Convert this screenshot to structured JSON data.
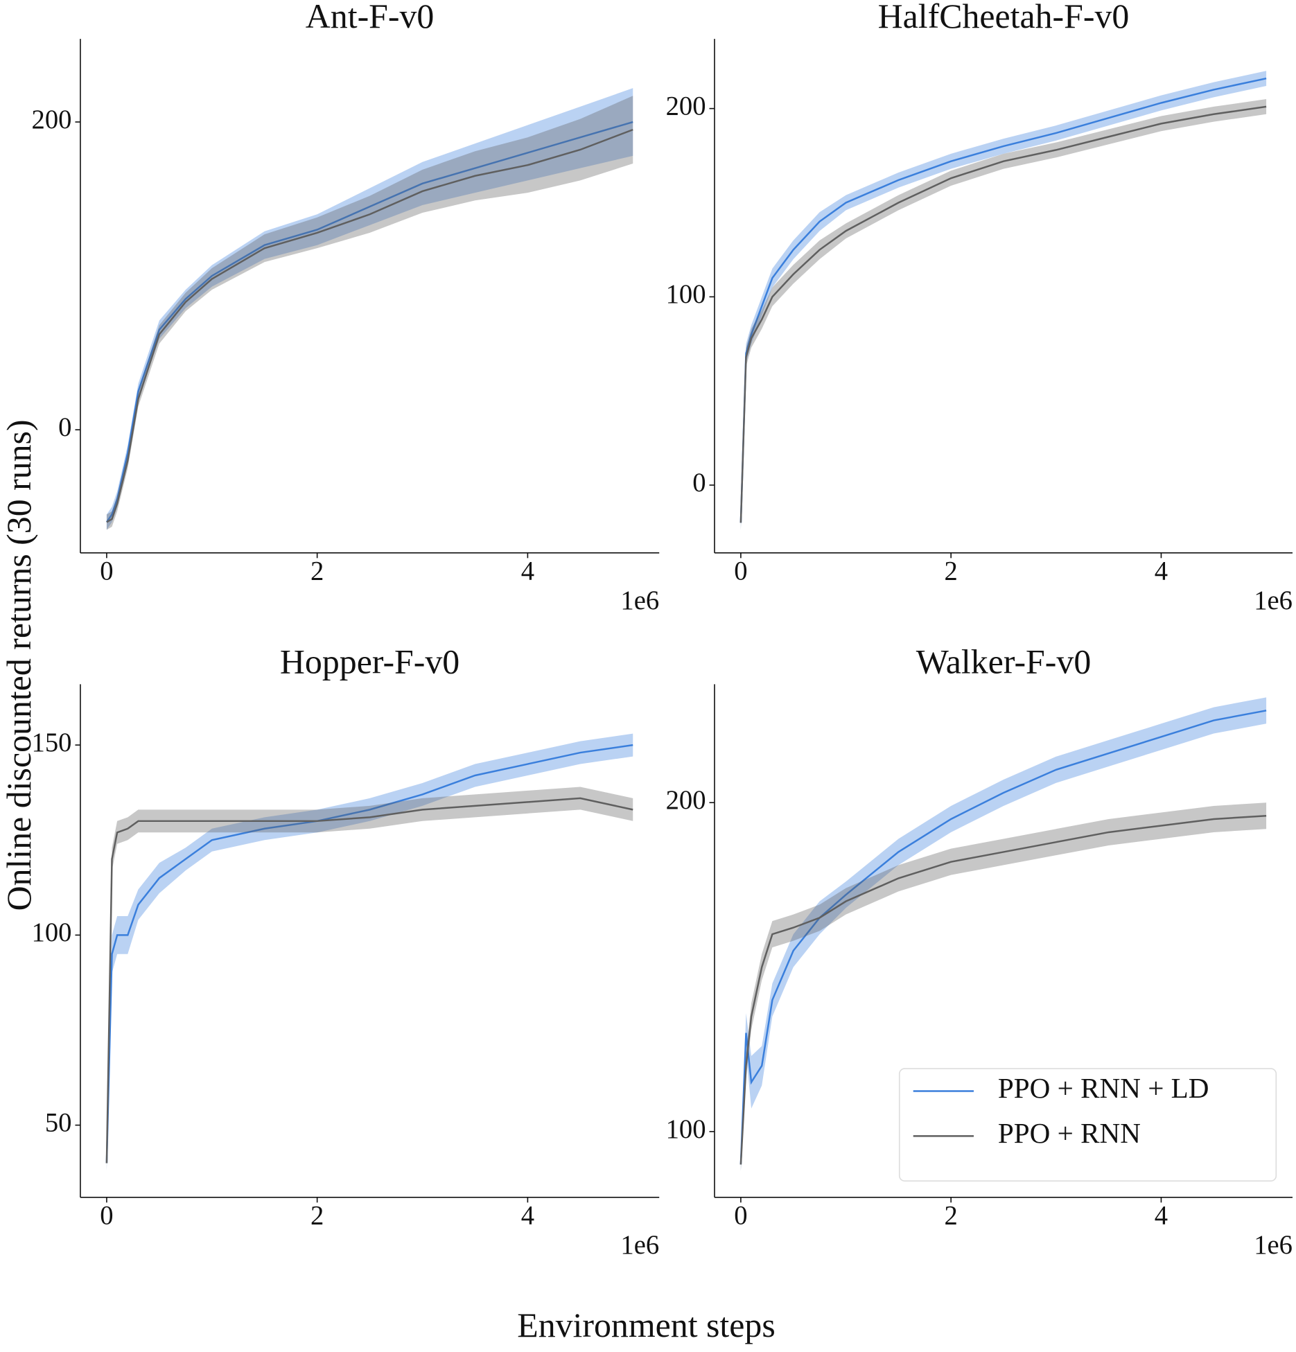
{
  "figure": {
    "xlabel": "Environment steps",
    "ylabel": "Online discounted returns (30 runs)"
  },
  "chart_data": [
    {
      "type": "line",
      "title": "Ant-F-v0",
      "x_offset_label": "1e6",
      "x": [
        0,
        0.05,
        0.1,
        0.2,
        0.3,
        0.5,
        0.75,
        1,
        1.5,
        2,
        2.5,
        3,
        3.5,
        4,
        4.5,
        5
      ],
      "series": [
        {
          "color": "#3a7fdc",
          "values": [
            -60,
            -55,
            -45,
            -15,
            25,
            65,
            85,
            100,
            120,
            130,
            145,
            160,
            170,
            180,
            190,
            200
          ],
          "spread": [
            5,
            5,
            5,
            5,
            5,
            6,
            6,
            7,
            9,
            10,
            12,
            14,
            16,
            18,
            20,
            22
          ]
        },
        {
          "color": "#5f5f5f",
          "values": [
            -60,
            -58,
            -48,
            -20,
            20,
            62,
            83,
            98,
            118,
            128,
            140,
            155,
            165,
            172,
            182,
            195
          ],
          "spread": [
            5,
            5,
            5,
            5,
            5,
            6,
            6,
            7,
            9,
            10,
            12,
            14,
            16,
            18,
            20,
            22
          ]
        }
      ],
      "xlim": [
        -0.25,
        5.25
      ],
      "ylim": [
        -80,
        254
      ],
      "xticks": [
        0,
        2,
        4
      ],
      "yticks": [
        0,
        200
      ]
    },
    {
      "type": "line",
      "title": "HalfCheetah-F-v0",
      "x_offset_label": "1e6",
      "x": [
        0,
        0.05,
        0.1,
        0.2,
        0.3,
        0.5,
        0.75,
        1,
        1.5,
        2,
        2.5,
        3,
        3.5,
        4,
        4.5,
        5
      ],
      "series": [
        {
          "color": "#3a7fdc",
          "values": [
            -20,
            70,
            80,
            95,
            110,
            125,
            140,
            150,
            162,
            172,
            180,
            187,
            195,
            203,
            210,
            216
          ],
          "spread": [
            4,
            5,
            5,
            5,
            5,
            5,
            5,
            4,
            4,
            4,
            4,
            4,
            4,
            4,
            4,
            4
          ]
        },
        {
          "color": "#5f5f5f",
          "values": [
            -20,
            68,
            78,
            88,
            100,
            112,
            125,
            135,
            150,
            163,
            172,
            178,
            185,
            192,
            197,
            201
          ],
          "spread": [
            4,
            5,
            5,
            5,
            5,
            5,
            5,
            4,
            4,
            4,
            4,
            4,
            4,
            4,
            4,
            4
          ]
        }
      ],
      "xlim": [
        -0.25,
        5.25
      ],
      "ylim": [
        -36,
        237
      ],
      "xticks": [
        0,
        2,
        4
      ],
      "yticks": [
        0,
        100,
        200
      ]
    },
    {
      "type": "line",
      "title": "Hopper-F-v0",
      "x_offset_label": "1e6",
      "x": [
        0,
        0.05,
        0.1,
        0.2,
        0.3,
        0.5,
        0.75,
        1,
        1.5,
        2,
        2.5,
        3,
        3.5,
        4,
        4.5,
        5
      ],
      "series": [
        {
          "color": "#3a7fdc",
          "values": [
            40,
            95,
            100,
            100,
            108,
            115,
            120,
            125,
            128,
            130,
            133,
            137,
            142,
            145,
            148,
            150
          ],
          "spread": [
            2,
            5,
            5,
            5,
            4,
            4,
            3,
            3,
            3,
            3,
            3,
            3,
            3,
            3,
            3,
            3
          ]
        },
        {
          "color": "#5f5f5f",
          "values": [
            40,
            120,
            127,
            128,
            130,
            130,
            130,
            130,
            130,
            130,
            131,
            133,
            134,
            135,
            136,
            133
          ],
          "spread": [
            2,
            3,
            3,
            3,
            3,
            3,
            3,
            3,
            3,
            3,
            3,
            3,
            3,
            3,
            3,
            3
          ]
        }
      ],
      "xlim": [
        -0.25,
        5.25
      ],
      "ylim": [
        31,
        166
      ],
      "xticks": [
        0,
        2,
        4
      ],
      "yticks": [
        50,
        100,
        150
      ]
    },
    {
      "type": "line",
      "title": "Walker-F-v0",
      "x_offset_label": "1e6",
      "legend": "lower right",
      "x": [
        0,
        0.05,
        0.1,
        0.2,
        0.3,
        0.5,
        0.75,
        1,
        1.5,
        2,
        2.5,
        3,
        3.5,
        4,
        4.5,
        5
      ],
      "series": [
        {
          "name": "PPO + RNN + LD",
          "color": "#3a7fdc",
          "values": [
            90,
            130,
            115,
            120,
            140,
            155,
            165,
            172,
            185,
            195,
            203,
            210,
            215,
            220,
            225,
            228
          ],
          "spread": [
            2,
            6,
            8,
            6,
            5,
            5,
            5,
            4,
            4,
            4,
            4,
            4,
            4,
            4,
            4,
            4
          ]
        },
        {
          "name": "PPO + RNN",
          "color": "#5f5f5f",
          "values": [
            90,
            120,
            135,
            150,
            160,
            162,
            165,
            170,
            177,
            182,
            185,
            188,
            191,
            193,
            195,
            196
          ],
          "spread": [
            2,
            4,
            4,
            4,
            4,
            4,
            4,
            4,
            4,
            4,
            4,
            4,
            4,
            4,
            4,
            4
          ]
        }
      ],
      "xlim": [
        -0.25,
        5.25
      ],
      "ylim": [
        80,
        236
      ],
      "xticks": [
        0,
        2,
        4
      ],
      "yticks": [
        100,
        200
      ]
    }
  ]
}
